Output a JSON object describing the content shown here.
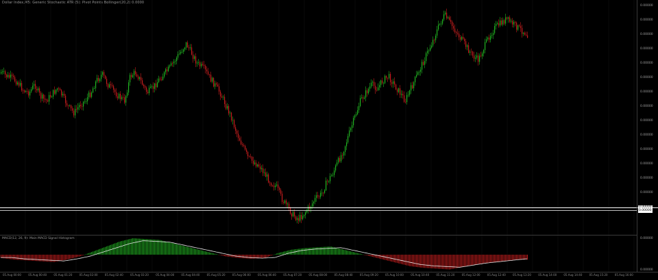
{
  "window": {
    "title": "Dollar Index,M5: Generic Stochastic  ATR (5): Pivot Points  Bollinger(20,2) 0.0000",
    "subtitle": "MACD(12, 26, 9): Main  MACD Signal  Histogram"
  },
  "price_scale": {
    "labels": [
      "0.00000",
      "0.00000",
      "0.00000",
      "0.00000",
      "0.00000",
      "0.00000",
      "0.00000",
      "0.00000",
      "0.00000",
      "0.00000",
      "0.00000",
      "0.00000",
      "0.00000",
      "0.00000"
    ],
    "current_price": "0.00000",
    "current_price2": "0.00000"
  },
  "indicator_scale": {
    "labels": [
      "0.00000",
      "0.00000"
    ]
  },
  "time_axis": {
    "labels": [
      "05.Aug 00:00",
      "05.Aug 00:40",
      "05.Aug 01:20",
      "05.Aug 02:00",
      "05.Aug 02:40",
      "05.Aug 03:20",
      "05.Aug 04:00",
      "05.Aug 04:40",
      "05.Aug 05:20",
      "05.Aug 06:00",
      "05.Aug 06:40",
      "05.Aug 07:20",
      "05.Aug 08:00",
      "05.Aug 08:40",
      "05.Aug 09:20",
      "05.Aug 10:00",
      "05.Aug 10:40",
      "05.Aug 11:20",
      "05.Aug 12:00",
      "05.Aug 12:40",
      "05.Aug 13:20",
      "05.Aug 14:00",
      "05.Aug 14:40",
      "05.Aug 15:20",
      "05.Aug 16:00"
    ]
  },
  "colors": {
    "bull": "#22b622",
    "bear": "#c81e1e",
    "background": "#000000",
    "hline": "#ffffff",
    "hist_pos": "#22b622",
    "hist_neg": "#c81e1e",
    "signal": "#e8e8e8"
  },
  "chart_data": {
    "type": "candlestick",
    "series_shape": [
      0.72,
      0.7,
      0.69,
      0.67,
      0.63,
      0.62,
      0.66,
      0.6,
      0.58,
      0.61,
      0.64,
      0.6,
      0.55,
      0.52,
      0.56,
      0.58,
      0.62,
      0.68,
      0.71,
      0.66,
      0.63,
      0.6,
      0.58,
      0.7,
      0.72,
      0.67,
      0.62,
      0.64,
      0.68,
      0.71,
      0.74,
      0.78,
      0.82,
      0.86,
      0.81,
      0.76,
      0.74,
      0.7,
      0.66,
      0.62,
      0.56,
      0.5,
      0.42,
      0.36,
      0.3,
      0.28,
      0.26,
      0.22,
      0.18,
      0.16,
      0.1,
      0.06,
      0.02,
      0.0,
      0.03,
      0.06,
      0.1,
      0.12,
      0.18,
      0.22,
      0.28,
      0.34,
      0.42,
      0.5,
      0.58,
      0.62,
      0.66,
      0.64,
      0.68,
      0.7,
      0.66,
      0.62,
      0.58,
      0.64,
      0.7,
      0.76,
      0.82,
      0.88,
      0.95,
      1.0,
      0.96,
      0.92,
      0.88,
      0.84,
      0.8,
      0.78,
      0.84,
      0.9,
      0.94,
      0.96,
      0.98,
      0.96,
      0.94,
      0.92,
      0.9
    ],
    "macd_shape": [
      -0.2,
      -0.3,
      -0.35,
      -0.4,
      -0.45,
      -0.3,
      -0.1,
      0.2,
      0.5,
      0.8,
      1.0,
      0.95,
      0.9,
      0.7,
      0.5,
      0.3,
      0.1,
      -0.1,
      -0.2,
      -0.25,
      -0.2,
      0.1,
      0.3,
      0.4,
      0.45,
      0.5,
      0.3,
      0.1,
      -0.1,
      -0.3,
      -0.5,
      -0.7,
      -0.8,
      -0.85,
      -0.9,
      -0.75,
      -0.6,
      -0.5,
      -0.4,
      -0.3,
      -0.3
    ]
  }
}
